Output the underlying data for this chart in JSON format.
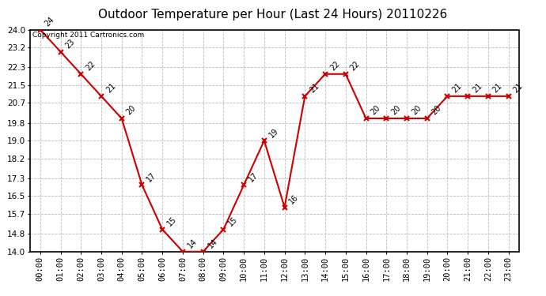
{
  "title": "Outdoor Temperature per Hour (Last 24 Hours) 20110226",
  "copyright_text": "Copyright 2011 Cartronics.com",
  "hours": [
    "00:00",
    "01:00",
    "02:00",
    "03:00",
    "04:00",
    "05:00",
    "06:00",
    "07:00",
    "08:00",
    "09:00",
    "10:00",
    "11:00",
    "12:00",
    "13:00",
    "14:00",
    "15:00",
    "16:00",
    "17:00",
    "18:00",
    "19:00",
    "20:00",
    "21:00",
    "22:00",
    "23:00"
  ],
  "values": [
    24,
    23,
    22,
    21,
    20,
    17,
    15,
    14,
    14,
    15,
    17,
    19,
    16,
    21,
    22,
    22,
    20,
    20,
    20,
    20,
    21,
    21,
    21,
    21
  ],
  "line_color": "#cc0000",
  "marker": "x",
  "marker_color": "#cc0000",
  "bg_color": "#ffffff",
  "grid_color": "#bbbbbb",
  "ylim": [
    14.0,
    24.0
  ],
  "yticks": [
    14.0,
    14.8,
    15.7,
    16.5,
    17.3,
    18.2,
    19.0,
    19.8,
    20.7,
    21.5,
    22.3,
    23.2,
    24.0
  ],
  "title_fontsize": 11,
  "label_fontsize": 7.5,
  "annotation_fontsize": 7,
  "copyright_fontsize": 6.5
}
